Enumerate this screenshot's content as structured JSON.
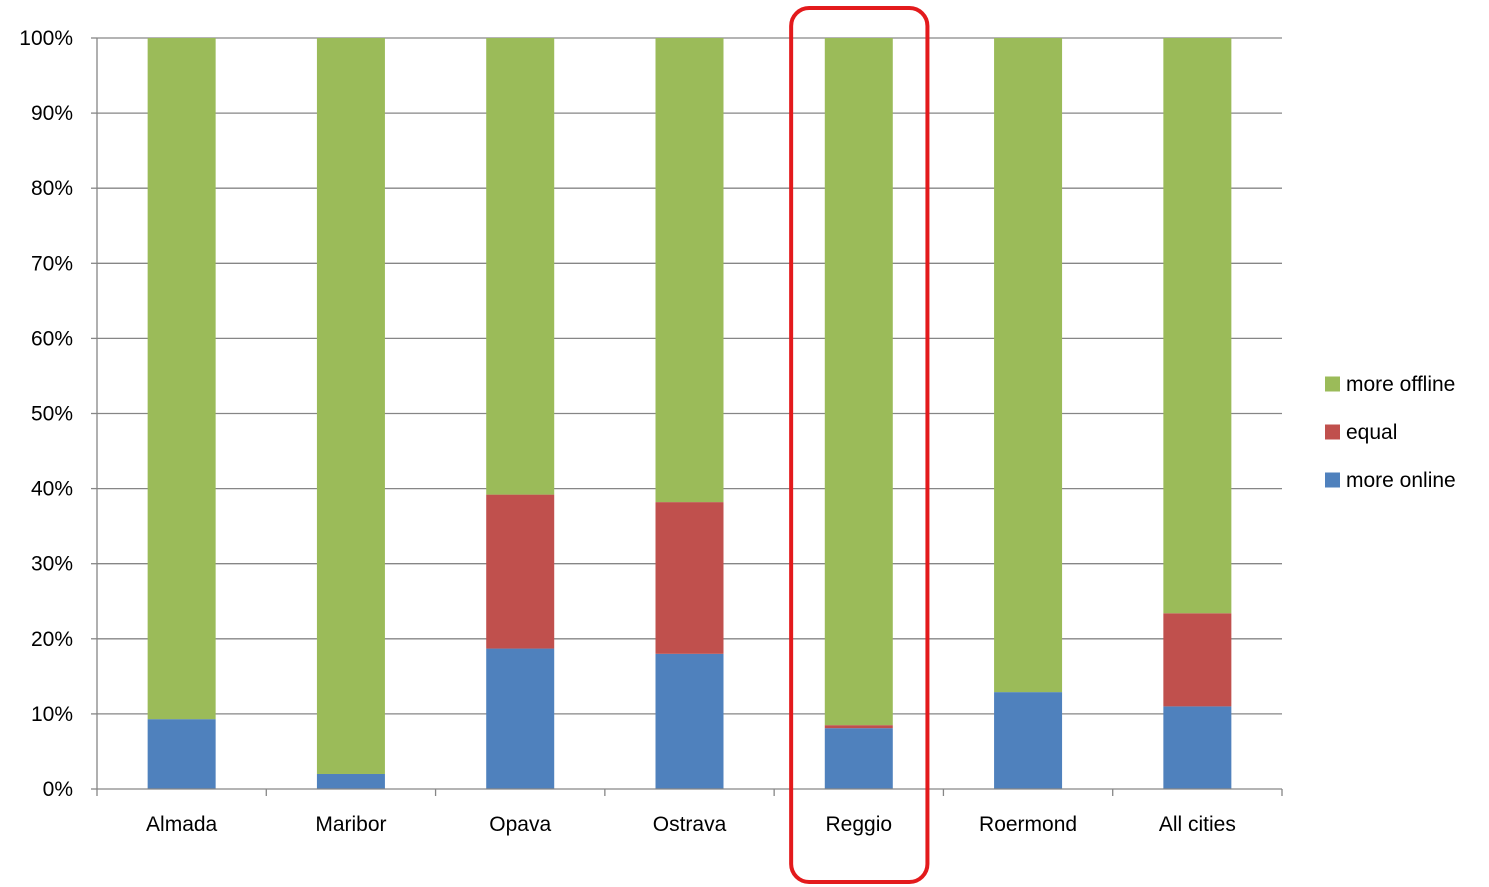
{
  "chart_data": {
    "type": "bar",
    "stacked": true,
    "percent_stacked": true,
    "title": "",
    "xlabel": "",
    "ylabel": "",
    "ylim": [
      0,
      100
    ],
    "y_ticks": [
      "0%",
      "10%",
      "20%",
      "30%",
      "40%",
      "50%",
      "60%",
      "70%",
      "80%",
      "90%",
      "100%"
    ],
    "grid": "horizontal",
    "legend_position": "right",
    "categories": [
      "Almada",
      "Maribor",
      "Opava",
      "Ostrava",
      "Reggio",
      "Roermond",
      "All cities"
    ],
    "series": [
      {
        "name": "more online",
        "color": "#4f81bd",
        "values": [
          9.3,
          2.0,
          18.7,
          18.0,
          8.1,
          12.9,
          11.0
        ]
      },
      {
        "name": "equal",
        "color": "#c0504d",
        "values": [
          0.0,
          0.0,
          20.5,
          20.2,
          0.4,
          0.0,
          12.4
        ]
      },
      {
        "name": "more offline",
        "color": "#9bbb59",
        "values": [
          90.7,
          98.0,
          60.8,
          61.8,
          91.5,
          87.1,
          76.6
        ]
      }
    ],
    "legend_order": [
      "more offline",
      "equal",
      "more online"
    ],
    "highlight": {
      "category": "Reggio",
      "color": "#e31a1c"
    }
  }
}
